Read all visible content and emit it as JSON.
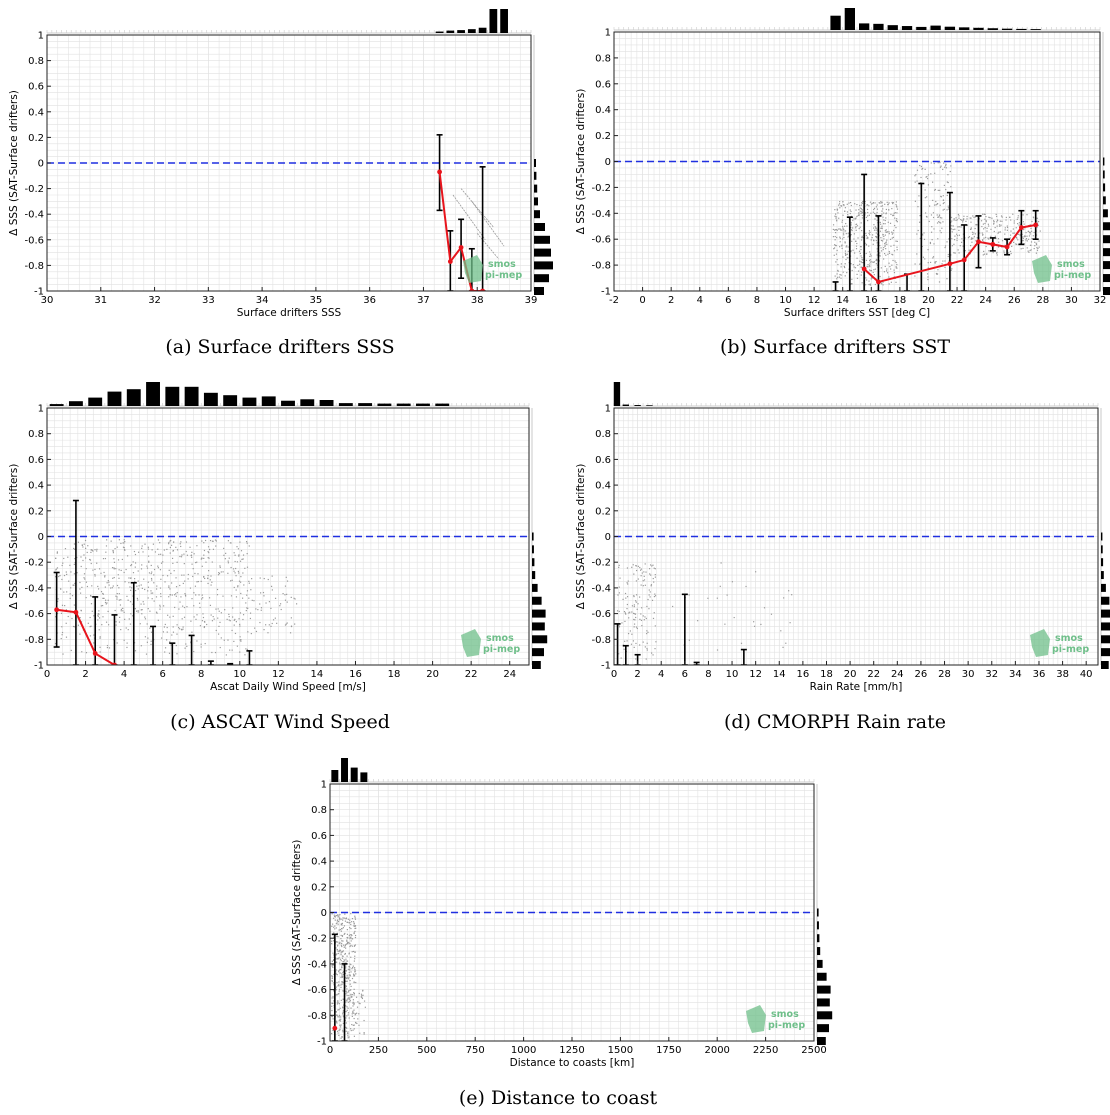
{
  "figure": {
    "captions": [
      "(a) Surface drifters SSS",
      "(b) Surface drifters SST",
      "(c) ASCAT Wind Speed",
      "(d) CMORPH Rain rate",
      "(e) Distance to coast"
    ]
  },
  "watermark": {
    "line1": "smos",
    "line2": "pi-mep",
    "color": "#6fbf8a"
  },
  "colors": {
    "zero_line": "#1f2fe0",
    "mean_line": "#e8141c",
    "error_bar": "#000000",
    "scatter": "#9a9a9a",
    "hist": "#000000",
    "grid": "#e2e2e2"
  },
  "chart_data": [
    {
      "id": "a",
      "type": "scatter",
      "title": "",
      "xlabel": "Surface drifters SSS",
      "ylabel": "Δ SSS (SAT-Surface drifters)",
      "xlim": [
        30,
        39
      ],
      "ylim": [
        -1,
        1
      ],
      "xticks": [
        30,
        31,
        32,
        33,
        34,
        35,
        36,
        37,
        38,
        39
      ],
      "xtick_labels": [
        "30",
        "31",
        "32",
        "33",
        "34",
        "35",
        "36",
        "37",
        "38",
        "39"
      ],
      "yticks": [
        1,
        0.8,
        0.6,
        0.4,
        0.2,
        0,
        -0.2,
        -0.4,
        -0.6,
        -0.8,
        -1
      ],
      "ytick_labels": [
        "1",
        "0.8",
        "0.6",
        "0.4",
        "0.2",
        "0",
        "-0.2",
        "-0.4",
        "-0.6",
        "-0.8",
        "-1"
      ],
      "grid": true,
      "zero_line": 0,
      "mean_curve": {
        "x": [
          37.3,
          37.5,
          37.7,
          37.9,
          38.1
        ],
        "y": [
          -0.07,
          -0.77,
          -0.66,
          -1.0,
          -1.0
        ]
      },
      "error_bars": [
        {
          "x": 37.3,
          "low": -0.37,
          "high": 0.22
        },
        {
          "x": 37.5,
          "low": -1.0,
          "high": -0.53
        },
        {
          "x": 37.7,
          "low": -0.9,
          "high": -0.44
        },
        {
          "x": 37.9,
          "low": -1.0,
          "high": -0.67
        },
        {
          "x": 38.1,
          "low": -1.0,
          "high": -0.03
        }
      ],
      "scatter": {
        "segments": [
          {
            "x": [
              37.55,
              38.15
            ],
            "y": [
              -0.25,
              -0.6
            ]
          },
          {
            "x": [
              37.7,
              38.3
            ],
            "y": [
              -0.2,
              -0.5
            ]
          },
          {
            "x": [
              37.9,
              38.5
            ],
            "y": [
              -0.3,
              -0.65
            ]
          },
          {
            "x": [
              38.0,
              38.4
            ],
            "y": [
              -0.55,
              -0.75
            ]
          }
        ],
        "clusters": []
      },
      "hist_top": {
        "bins": [
          37.3,
          37.5,
          37.7,
          37.9,
          38.1,
          38.3,
          38.5
        ],
        "values": [
          0.06,
          0.1,
          0.12,
          0.16,
          0.22,
          1.0,
          1.0
        ]
      },
      "hist_right": {
        "bins": [
          0.0,
          -0.1,
          -0.2,
          -0.3,
          -0.4,
          -0.5,
          -0.6,
          -0.7,
          -0.8,
          -0.9,
          -1.0
        ],
        "values": [
          0.1,
          0.12,
          0.16,
          0.2,
          0.3,
          0.55,
          0.8,
          0.85,
          0.95,
          0.75,
          0.5
        ]
      },
      "watermark_pos": "bottom-right"
    },
    {
      "id": "b",
      "type": "scatter",
      "title": "",
      "xlabel": "Surface drifters SST [deg C]",
      "ylabel": "Δ SSS (SAT-Surface drifters)",
      "xlim": [
        -2,
        32
      ],
      "ylim": [
        -1,
        1
      ],
      "xticks": [
        -2,
        0,
        2,
        4,
        6,
        8,
        10,
        12,
        14,
        16,
        18,
        20,
        22,
        24,
        26,
        28,
        30,
        32
      ],
      "xtick_labels": [
        "-2",
        "0",
        "2",
        "4",
        "6",
        "8",
        "10",
        "12",
        "14",
        "16",
        "18",
        "20",
        "22",
        "24",
        "26",
        "28",
        "30",
        "32"
      ],
      "yticks": [
        1,
        0.8,
        0.6,
        0.4,
        0.2,
        0,
        -0.2,
        -0.4,
        -0.6,
        -0.8,
        -1
      ],
      "ytick_labels": [
        "1",
        "0.8",
        "0.6",
        "0.4",
        "0.2",
        "0",
        "-0.2",
        "-0.4",
        "-0.6",
        "-0.8",
        "-1"
      ],
      "grid": true,
      "zero_line": 0,
      "mean_curve": {
        "x": [
          15.5,
          16.5,
          21.5,
          22.5,
          23.5,
          24.5,
          25.5,
          26.5,
          27.5
        ],
        "y": [
          -0.83,
          -0.93,
          -0.79,
          -0.76,
          -0.62,
          -0.64,
          -0.66,
          -0.51,
          -0.49
        ]
      },
      "error_bars": [
        {
          "x": 13.5,
          "low": -1.0,
          "high": -0.93
        },
        {
          "x": 14.5,
          "low": -1.0,
          "high": -0.43
        },
        {
          "x": 15.5,
          "low": -1.0,
          "high": -0.1
        },
        {
          "x": 16.5,
          "low": -1.0,
          "high": -0.42
        },
        {
          "x": 18.5,
          "low": -1.0,
          "high": -0.87
        },
        {
          "x": 19.5,
          "low": -1.0,
          "high": -0.17
        },
        {
          "x": 21.5,
          "low": -1.0,
          "high": -0.24
        },
        {
          "x": 22.5,
          "low": -1.0,
          "high": -0.49
        },
        {
          "x": 23.5,
          "low": -0.82,
          "high": -0.42
        },
        {
          "x": 24.5,
          "low": -0.69,
          "high": -0.59
        },
        {
          "x": 25.5,
          "low": -0.72,
          "high": -0.6
        },
        {
          "x": 26.5,
          "low": -0.64,
          "high": -0.38
        },
        {
          "x": 27.5,
          "low": -0.6,
          "high": -0.38
        }
      ],
      "scatter": {
        "segments": [],
        "clusters": [
          {
            "x": [
              13.3,
              17.8
            ],
            "y": [
              -0.95,
              -0.3
            ],
            "n": 520
          },
          {
            "x": [
              19.0,
              21.6
            ],
            "y": [
              -0.95,
              -0.0
            ],
            "n": 160
          },
          {
            "x": [
              21.5,
              27.8
            ],
            "y": [
              -0.72,
              -0.4
            ],
            "n": 300
          }
        ]
      },
      "hist_top": {
        "bins": [
          13.5,
          14.5,
          15.5,
          16.5,
          17.5,
          18.5,
          19.5,
          20.5,
          21.5,
          22.5,
          23.5,
          24.5,
          25.5,
          26.5,
          27.5
        ],
        "values": [
          0.65,
          1.0,
          0.3,
          0.28,
          0.22,
          0.18,
          0.14,
          0.2,
          0.15,
          0.12,
          0.1,
          0.08,
          0.06,
          0.05,
          0.04
        ]
      },
      "hist_right": {
        "bins": [
          0.0,
          -0.1,
          -0.2,
          -0.3,
          -0.4,
          -0.5,
          -0.6,
          -0.7,
          -0.8,
          -0.9,
          -1.0
        ],
        "values": [
          0.1,
          0.12,
          0.15,
          0.2,
          0.35,
          0.6,
          0.85,
          0.9,
          0.95,
          0.8,
          0.6
        ]
      },
      "watermark_pos": "bottom-right"
    },
    {
      "id": "c",
      "type": "scatter",
      "title": "",
      "xlabel": "Ascat Daily Wind Speed [m/s]",
      "ylabel": "Δ SSS (SAT-Surface drifters)",
      "xlim": [
        0,
        25
      ],
      "ylim": [
        -1,
        1
      ],
      "xticks": [
        0,
        2,
        4,
        6,
        8,
        10,
        12,
        14,
        16,
        18,
        20,
        22,
        24
      ],
      "xtick_labels": [
        "0",
        "2",
        "4",
        "6",
        "8",
        "10",
        "12",
        "14",
        "16",
        "18",
        "20",
        "22",
        "24"
      ],
      "yticks": [
        1,
        0.8,
        0.6,
        0.4,
        0.2,
        0,
        -0.2,
        -0.4,
        -0.6,
        -0.8,
        -1
      ],
      "ytick_labels": [
        "1",
        "0.8",
        "0.6",
        "0.4",
        "0.2",
        "0",
        "-0.2",
        "-0.4",
        "-0.6",
        "-0.8",
        "-1"
      ],
      "grid": true,
      "zero_line": 0,
      "mean_curve": {
        "x": [
          0.5,
          1.5,
          2.5,
          3.5
        ],
        "y": [
          -0.57,
          -0.59,
          -0.91,
          -1.0
        ]
      },
      "error_bars": [
        {
          "x": 0.5,
          "low": -0.86,
          "high": -0.28
        },
        {
          "x": 1.5,
          "low": -1.0,
          "high": 0.28
        },
        {
          "x": 2.5,
          "low": -1.0,
          "high": -0.47
        },
        {
          "x": 3.5,
          "low": -1.0,
          "high": -0.61
        },
        {
          "x": 4.5,
          "low": -1.0,
          "high": -0.36
        },
        {
          "x": 5.5,
          "low": -1.0,
          "high": -0.7
        },
        {
          "x": 6.5,
          "low": -1.0,
          "high": -0.83
        },
        {
          "x": 7.5,
          "low": -1.0,
          "high": -0.77
        },
        {
          "x": 8.5,
          "low": -1.0,
          "high": -0.97
        },
        {
          "x": 9.5,
          "low": -1.0,
          "high": -0.99
        },
        {
          "x": 10.5,
          "low": -1.0,
          "high": -0.89
        }
      ],
      "scatter": {
        "segments": [],
        "clusters": [
          {
            "x": [
              0.4,
              10.5
            ],
            "y": [
              -0.92,
              -0.02
            ],
            "n": 700
          },
          {
            "x": [
              10.5,
              13.0
            ],
            "y": [
              -0.8,
              -0.3
            ],
            "n": 60
          }
        ]
      },
      "hist_top": {
        "bins": [
          0.5,
          1.5,
          2.5,
          3.5,
          4.5,
          5.5,
          6.5,
          7.5,
          8.5,
          9.5,
          10.5,
          11.5,
          12.5,
          13.5,
          14.5,
          15.5,
          16.5,
          17.5,
          18.5,
          19.5,
          20.5
        ],
        "values": [
          0.08,
          0.2,
          0.35,
          0.6,
          0.7,
          1.0,
          0.8,
          0.8,
          0.55,
          0.45,
          0.35,
          0.4,
          0.22,
          0.28,
          0.25,
          0.12,
          0.12,
          0.1,
          0.1,
          0.1,
          0.1
        ]
      },
      "hist_right": {
        "bins": [
          0.0,
          -0.1,
          -0.2,
          -0.3,
          -0.4,
          -0.5,
          -0.6,
          -0.7,
          -0.8,
          -0.9,
          -1.0
        ],
        "values": [
          0.1,
          0.12,
          0.15,
          0.2,
          0.35,
          0.6,
          0.85,
          0.8,
          0.95,
          0.75,
          0.55
        ]
      },
      "watermark_pos": "bottom-right"
    },
    {
      "id": "d",
      "type": "scatter",
      "title": "",
      "xlabel": "Rain Rate [mm/h]",
      "ylabel": "Δ SSS (SAT-Surface drifters)",
      "xlim": [
        0,
        41
      ],
      "ylim": [
        -1,
        1
      ],
      "xticks": [
        0,
        2,
        4,
        6,
        8,
        10,
        12,
        14,
        16,
        18,
        20,
        22,
        24,
        26,
        28,
        30,
        32,
        34,
        36,
        38,
        40
      ],
      "xtick_labels": [
        "0",
        "2",
        "4",
        "6",
        "8",
        "10",
        "12",
        "14",
        "16",
        "18",
        "20",
        "22",
        "24",
        "26",
        "28",
        "30",
        "32",
        "34",
        "36",
        "38",
        "40"
      ],
      "yticks": [
        1,
        0.8,
        0.6,
        0.4,
        0.2,
        0,
        -0.2,
        -0.4,
        -0.6,
        -0.8,
        -1
      ],
      "ytick_labels": [
        "1",
        "0.8",
        "0.6",
        "0.4",
        "0.2",
        "0",
        "-0.2",
        "-0.4",
        "-0.6",
        "-0.8",
        "-1"
      ],
      "grid": true,
      "zero_line": 0,
      "mean_curve": {
        "x": [],
        "y": []
      },
      "error_bars": [
        {
          "x": 0.3,
          "low": -1.0,
          "high": -0.68
        },
        {
          "x": 1.0,
          "low": -1.0,
          "high": -0.85
        },
        {
          "x": 2.0,
          "low": -1.0,
          "high": -0.92
        },
        {
          "x": 6.0,
          "low": -1.0,
          "high": -0.45
        },
        {
          "x": 7.0,
          "low": -1.0,
          "high": -0.98
        },
        {
          "x": 11.0,
          "low": -1.0,
          "high": -0.88
        }
      ],
      "scatter": {
        "segments": [],
        "clusters": [
          {
            "x": [
              0.2,
              3.5
            ],
            "y": [
              -0.95,
              -0.2
            ],
            "n": 140
          },
          {
            "x": [
              3.5,
              15.0
            ],
            "y": [
              -0.9,
              -0.2
            ],
            "n": 30
          }
        ]
      },
      "hist_top": {
        "bins": [
          0.25,
          1.0,
          2.0,
          3.0
        ],
        "values": [
          1.0,
          0.06,
          0.04,
          0.03
        ]
      },
      "hist_right": {
        "bins": [
          0.0,
          -0.1,
          -0.2,
          -0.3,
          -0.4,
          -0.5,
          -0.6,
          -0.7,
          -0.8,
          -0.9,
          -1.0
        ],
        "values": [
          0.1,
          0.12,
          0.15,
          0.2,
          0.35,
          0.6,
          0.85,
          0.8,
          0.95,
          0.75,
          0.55
        ]
      },
      "watermark_pos": "bottom-right"
    },
    {
      "id": "e",
      "type": "scatter",
      "title": "",
      "xlabel": "Distance to coasts [km]",
      "ylabel": "Δ SSS (SAT-Surface drifters)",
      "xlim": [
        0,
        2500
      ],
      "ylim": [
        -1,
        1
      ],
      "xticks": [
        0,
        250,
        500,
        750,
        1000,
        1250,
        1500,
        1750,
        2000,
        2250,
        2500
      ],
      "xtick_labels": [
        "0",
        "250",
        "500",
        "750",
        "1000",
        "1250",
        "1500",
        "1750",
        "2000",
        "2250",
        "2500"
      ],
      "yticks": [
        1,
        0.8,
        0.6,
        0.4,
        0.2,
        0,
        -0.2,
        -0.4,
        -0.6,
        -0.8,
        -1
      ],
      "ytick_labels": [
        "1",
        "0.8",
        "0.6",
        "0.4",
        "0.2",
        "0",
        "-0.2",
        "-0.4",
        "-0.6",
        "-0.8",
        "-1"
      ],
      "grid": true,
      "zero_line": 0,
      "mean_curve": {
        "x": [
          25
        ],
        "y": [
          -0.9
        ]
      },
      "error_bars": [
        {
          "x": 25,
          "low": -1.0,
          "high": -0.17
        },
        {
          "x": 75,
          "low": -1.0,
          "high": -0.4
        }
      ],
      "scatter": {
        "segments": [],
        "clusters": [
          {
            "x": [
              5,
              130
            ],
            "y": [
              -0.98,
              -0.0
            ],
            "n": 500
          },
          {
            "x": [
              130,
              180
            ],
            "y": [
              -0.95,
              -0.6
            ],
            "n": 25
          }
        ]
      },
      "hist_top": {
        "bins": [
          25,
          75,
          125,
          175
        ],
        "values": [
          0.5,
          1.0,
          0.6,
          0.4
        ]
      },
      "hist_right": {
        "bins": [
          0.0,
          -0.1,
          -0.2,
          -0.3,
          -0.4,
          -0.5,
          -0.6,
          -0.7,
          -0.8,
          -0.9,
          -1.0
        ],
        "values": [
          0.1,
          0.12,
          0.15,
          0.2,
          0.35,
          0.6,
          0.85,
          0.8,
          0.95,
          0.75,
          0.55
        ]
      },
      "watermark_pos": "bottom-right"
    }
  ]
}
